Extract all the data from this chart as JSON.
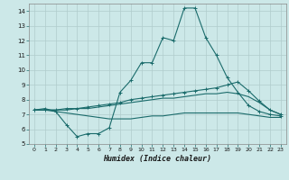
{
  "xlabel": "Humidex (Indice chaleur)",
  "bg_color": "#cce8e8",
  "grid_color": "#b0cccc",
  "line_color": "#1a6b6b",
  "xlim": [
    -0.5,
    23.5
  ],
  "ylim": [
    5,
    14.5
  ],
  "yticks": [
    5,
    6,
    7,
    8,
    9,
    10,
    11,
    12,
    13,
    14
  ],
  "xticks": [
    0,
    1,
    2,
    3,
    4,
    5,
    6,
    7,
    8,
    9,
    10,
    11,
    12,
    13,
    14,
    15,
    16,
    17,
    18,
    19,
    20,
    21,
    22,
    23
  ],
  "line1_x": [
    0,
    1,
    2,
    3,
    4,
    5,
    6,
    7,
    8,
    9,
    10,
    11,
    12,
    13,
    14,
    15,
    16,
    17,
    18,
    19,
    20,
    21,
    22,
    23
  ],
  "line1_y": [
    7.3,
    7.4,
    7.2,
    6.3,
    5.5,
    5.7,
    5.7,
    6.1,
    8.5,
    9.3,
    10.5,
    10.5,
    12.2,
    12.0,
    14.2,
    14.2,
    12.2,
    11.0,
    9.5,
    8.5,
    7.6,
    7.2,
    7.0,
    6.9
  ],
  "line2_x": [
    0,
    1,
    2,
    3,
    4,
    5,
    6,
    7,
    8,
    9,
    10,
    11,
    12,
    13,
    14,
    15,
    16,
    17,
    18,
    19,
    20,
    21,
    22,
    23
  ],
  "line2_y": [
    7.3,
    7.3,
    7.3,
    7.4,
    7.4,
    7.5,
    7.6,
    7.7,
    7.8,
    8.0,
    8.1,
    8.2,
    8.3,
    8.4,
    8.5,
    8.6,
    8.7,
    8.8,
    9.0,
    9.2,
    8.6,
    7.9,
    7.3,
    7.0
  ],
  "line3_x": [
    0,
    1,
    2,
    3,
    4,
    5,
    6,
    7,
    8,
    9,
    10,
    11,
    12,
    13,
    14,
    15,
    16,
    17,
    18,
    19,
    20,
    21,
    22,
    23
  ],
  "line3_y": [
    7.3,
    7.3,
    7.3,
    7.3,
    7.4,
    7.4,
    7.5,
    7.6,
    7.7,
    7.8,
    7.9,
    8.0,
    8.1,
    8.1,
    8.2,
    8.3,
    8.4,
    8.4,
    8.5,
    8.4,
    8.2,
    7.8,
    7.3,
    7.0
  ],
  "line4_x": [
    0,
    1,
    2,
    3,
    4,
    5,
    6,
    7,
    8,
    9,
    10,
    11,
    12,
    13,
    14,
    15,
    16,
    17,
    18,
    19,
    20,
    21,
    22,
    23
  ],
  "line4_y": [
    7.3,
    7.3,
    7.2,
    7.1,
    7.0,
    6.9,
    6.8,
    6.7,
    6.7,
    6.7,
    6.8,
    6.9,
    6.9,
    7.0,
    7.1,
    7.1,
    7.1,
    7.1,
    7.1,
    7.1,
    7.0,
    6.9,
    6.8,
    6.8
  ]
}
